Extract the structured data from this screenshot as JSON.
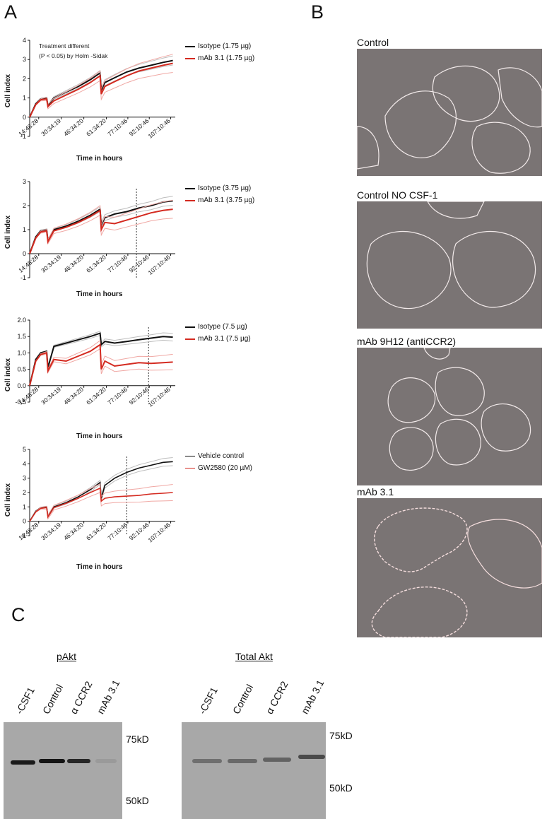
{
  "panels": {
    "a": "A",
    "b": "B",
    "c": "C"
  },
  "charts": [
    {
      "ylabel": "Cell index",
      "xlabel": "Time in hours",
      "yticks": [
        "4",
        "3",
        "2",
        "1",
        "0",
        "-1"
      ],
      "xticks": [
        "14:48:28",
        "30:34:19",
        "46:34:20",
        "61:34:20",
        "77:10:46",
        "92:10:46",
        "107:10:46"
      ],
      "annotation_l1": "Treatment different",
      "annotation_l2": "(P < 0.05) by Holm -Sidak",
      "legend": [
        "Isotype (1.75 µg)",
        "mAb 3.1 (1.75 µg)"
      ]
    },
    {
      "ylabel": "Cell index",
      "xlabel": "Time in hours",
      "yticks": [
        "3",
        "2",
        "1",
        "0",
        "-1"
      ],
      "xticks": [
        "14:48:28",
        "30:34:19",
        "46:34:20",
        "61:34:20",
        "77:10:46",
        "92:10:46",
        "107:10:46"
      ],
      "legend": [
        "Isotype (3.75 µg)",
        "mAb 3.1 (3.75 µg)"
      ]
    },
    {
      "ylabel": "Cell index",
      "xlabel": "Time in hours",
      "yticks": [
        "2.0",
        "1.5",
        "1.0",
        "0.5",
        "0.0",
        "-0.5"
      ],
      "xticks": [
        "14:48:28",
        "30:34:19",
        "46:34:20",
        "61:34:20",
        "77:10:46",
        "92:10:46",
        "107:10:46"
      ],
      "legend": [
        "Isotype (7.5 µg)",
        "mAb 3.1 (7.5 µg)"
      ]
    },
    {
      "ylabel": "Cell index",
      "xlabel": "Time in hours",
      "yticks": [
        "5",
        "4",
        "3",
        "2",
        "1",
        "0",
        "-1"
      ],
      "xticks": [
        "14:48:28",
        "30:34:19",
        "46:34:20",
        "61:34:20",
        "77:10:46",
        "92:10:46",
        "107:10:46"
      ],
      "legend": [
        "Vehicle control",
        "GW2580 (20 µM)"
      ]
    }
  ],
  "chart_data": [
    {
      "type": "line",
      "ylim": [
        -1,
        4
      ],
      "x_hours": [
        0,
        5,
        9,
        14,
        15,
        20,
        30,
        40,
        50,
        58,
        59,
        62,
        70,
        80,
        90,
        100,
        110,
        118
      ],
      "series": [
        {
          "name": "Isotype (1.75 µg)",
          "color": "#111111",
          "values": [
            0,
            0.7,
            0.95,
            1.0,
            0.6,
            1.0,
            1.3,
            1.6,
            1.95,
            2.3,
            1.4,
            1.8,
            2.05,
            2.35,
            2.55,
            2.7,
            2.85,
            2.95
          ]
        },
        {
          "name": "mAb 3.1 (1.75 µg)",
          "color": "#d42a20",
          "values": [
            0,
            0.65,
            0.9,
            0.95,
            0.55,
            0.85,
            1.15,
            1.45,
            1.8,
            2.15,
            1.2,
            1.6,
            1.85,
            2.15,
            2.4,
            2.55,
            2.7,
            2.8
          ]
        }
      ]
    },
    {
      "type": "line",
      "ylim": [
        -1,
        3
      ],
      "x_hours": [
        0,
        5,
        9,
        14,
        15,
        20,
        30,
        40,
        50,
        58,
        59,
        62,
        70,
        80,
        90,
        100,
        110,
        118
      ],
      "series": [
        {
          "name": "Isotype (3.75 µg)",
          "color": "#111111",
          "values": [
            0,
            0.7,
            0.95,
            1.0,
            0.55,
            1.0,
            1.15,
            1.35,
            1.6,
            1.85,
            1.2,
            1.5,
            1.65,
            1.75,
            1.9,
            2.0,
            2.15,
            2.2
          ]
        },
        {
          "name": "mAb 3.1 (3.75 µg)",
          "color": "#d42a20",
          "values": [
            0,
            0.65,
            0.9,
            0.95,
            0.5,
            0.95,
            1.1,
            1.3,
            1.55,
            1.8,
            1.0,
            1.3,
            1.25,
            1.4,
            1.55,
            1.7,
            1.8,
            1.85
          ]
        }
      ]
    },
    {
      "type": "line",
      "ylim": [
        -0.5,
        2.0
      ],
      "x_hours": [
        0,
        5,
        9,
        14,
        15,
        20,
        30,
        40,
        50,
        58,
        59,
        62,
        70,
        80,
        90,
        100,
        110,
        118
      ],
      "series": [
        {
          "name": "Isotype (7.5 µg)",
          "color": "#111111",
          "values": [
            0,
            0.8,
            1.0,
            1.05,
            0.55,
            1.2,
            1.3,
            1.4,
            1.5,
            1.6,
            1.25,
            1.35,
            1.3,
            1.35,
            1.4,
            1.45,
            1.5,
            1.48
          ]
        },
        {
          "name": "mAb 3.1 (7.5 µg)",
          "color": "#d42a20",
          "values": [
            0,
            0.75,
            0.95,
            1.0,
            0.45,
            0.8,
            0.75,
            0.9,
            1.05,
            1.25,
            0.5,
            0.75,
            0.6,
            0.65,
            0.7,
            0.68,
            0.7,
            0.72
          ]
        }
      ]
    },
    {
      "type": "line",
      "ylim": [
        -1,
        5
      ],
      "x_hours": [
        0,
        5,
        9,
        14,
        15,
        20,
        30,
        40,
        50,
        58,
        59,
        62,
        70,
        80,
        90,
        100,
        110,
        118
      ],
      "series": [
        {
          "name": "Vehicle control",
          "color": "#111111",
          "values": [
            0,
            0.7,
            0.95,
            1.0,
            0.35,
            1.0,
            1.3,
            1.7,
            2.2,
            2.7,
            1.6,
            2.5,
            3.0,
            3.4,
            3.7,
            3.9,
            4.1,
            4.15
          ]
        },
        {
          "name": "GW2580 (20 µM)",
          "color": "#d42a20",
          "values": [
            0,
            0.65,
            0.9,
            0.95,
            0.3,
            0.95,
            1.25,
            1.6,
            2.0,
            2.3,
            1.4,
            1.6,
            1.7,
            1.75,
            1.8,
            1.9,
            1.95,
            2.0
          ]
        }
      ]
    }
  ],
  "micrographs": [
    "Control",
    "Control NO CSF-1",
    "mAb 9H12 (antiCCR2)",
    "mAb 3.1"
  ],
  "blots": [
    {
      "title": "pAkt",
      "lanes": [
        "-CSF1",
        "Control",
        "α CCR2",
        "mAb 3.1"
      ],
      "kd_top": "75kD",
      "kd_bottom": "50kD"
    },
    {
      "title": "Total Akt",
      "lanes": [
        "-CSF1",
        "Control",
        "α CCR2",
        "mAb 3.1"
      ],
      "kd_top": "75kD",
      "kd_bottom": "50kD"
    }
  ]
}
